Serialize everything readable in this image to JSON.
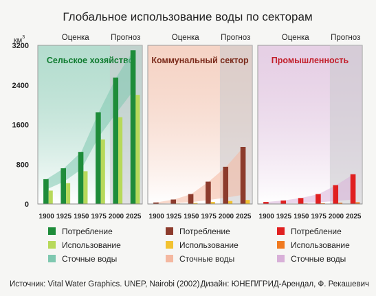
{
  "title": "Глобальное использование воды по секторам",
  "unit": "км",
  "unit_sup": "3",
  "header_labels": {
    "assessment": "Оценка",
    "forecast": "Прогноз"
  },
  "source": "Источник: Vital Water Graphics. UNEP, Nairobi (2002)",
  "design": "Дизайн: ЮНЕП/ГРИД-Арендал, Ф. Рекашевич",
  "colors": {
    "frame": "#f6f6f4",
    "forecast_band": "#c8c8cc"
  },
  "chart_data": [
    {
      "type": "bar",
      "title": "Сельское хозяйство",
      "title_color": "#0e7a2e",
      "categories": [
        "1900",
        "1925",
        "1950",
        "1975",
        "2000",
        "2025"
      ],
      "ylim": [
        0,
        3200
      ],
      "yticks": [
        "0",
        "800",
        "1600",
        "2400",
        "3200"
      ],
      "series": [
        {
          "name": "Потребление",
          "color": "#1e8c3a",
          "values": [
            500,
            720,
            1050,
            1850,
            2550,
            3100
          ]
        },
        {
          "name": "Использование",
          "color": "#b7d95a",
          "values": [
            270,
            420,
            660,
            1300,
            1750,
            2200
          ]
        },
        {
          "name": "Сточные воды",
          "color": "#7fc8b0",
          "values": [
            230,
            300,
            390,
            550,
            800,
            900
          ]
        }
      ]
    },
    {
      "type": "bar",
      "title": "Коммунальный сектор",
      "title_color": "#7a2a1a",
      "categories": [
        "1900",
        "1925",
        "1950",
        "1975",
        "2000",
        "2025"
      ],
      "ylim": [
        0,
        3200
      ],
      "series": [
        {
          "name": "Потребление",
          "color": "#8c3b2c",
          "values": [
            30,
            90,
            200,
            450,
            750,
            1150
          ]
        },
        {
          "name": "Использование",
          "color": "#f2c230",
          "values": [
            5,
            10,
            20,
            40,
            60,
            80
          ]
        },
        {
          "name": "Сточные воды",
          "color": "#f4b8a0",
          "values": [
            25,
            80,
            180,
            410,
            690,
            1070
          ]
        }
      ]
    },
    {
      "type": "bar",
      "title": "Промышленность",
      "title_color": "#c21f2b",
      "categories": [
        "1900",
        "1925",
        "1950",
        "1975",
        "2000",
        "2025"
      ],
      "ylim": [
        0,
        3200
      ],
      "series": [
        {
          "name": "Потребление",
          "color": "#e02020",
          "values": [
            40,
            70,
            120,
            200,
            380,
            600
          ]
        },
        {
          "name": "Использование",
          "color": "#f07a20",
          "values": [
            3,
            5,
            10,
            15,
            25,
            35
          ]
        },
        {
          "name": "Сточные воды",
          "color": "#d8b0d8",
          "values": [
            37,
            65,
            110,
            185,
            355,
            565
          ]
        }
      ]
    }
  ]
}
